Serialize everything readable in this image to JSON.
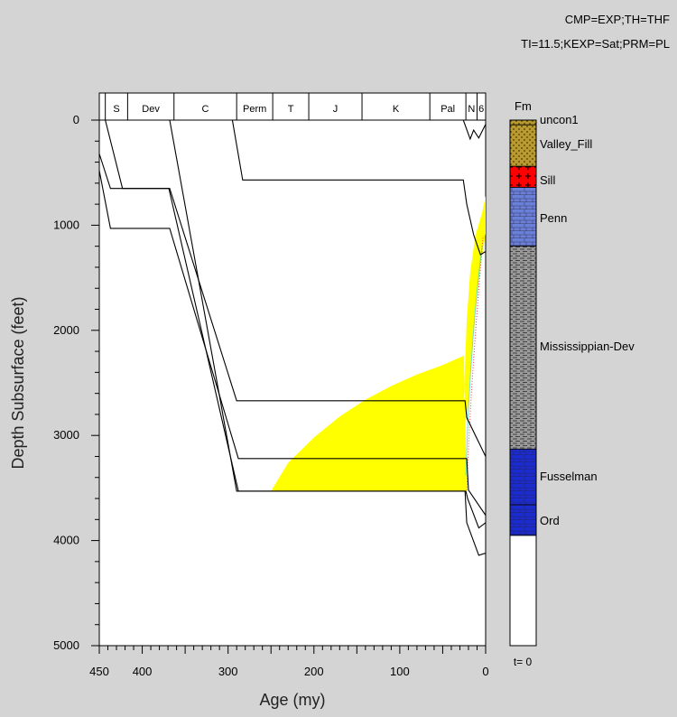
{
  "header": {
    "line1": "CMP=EXP;TH=THF",
    "line2": "TI=11.5;KEXP=Sat;PRM=PL"
  },
  "chart_data": {
    "type": "burial-history",
    "xlabel": "Age (my)",
    "ylabel": "Depth Subsurface (feet)",
    "xlim": [
      450,
      0
    ],
    "ylim": [
      0,
      5000
    ],
    "x_ticks": [
      450,
      400,
      300,
      200,
      100,
      0
    ],
    "y_ticks": [
      0,
      1000,
      2000,
      3000,
      4000,
      5000
    ],
    "periods": [
      {
        "label": "S",
        "start": 443,
        "end": 417
      },
      {
        "label": "Dev",
        "start": 417,
        "end": 363
      },
      {
        "label": "C",
        "start": 363,
        "end": 290
      },
      {
        "label": "Perm",
        "start": 290,
        "end": 248
      },
      {
        "label": "T",
        "start": 248,
        "end": 206
      },
      {
        "label": "J",
        "start": 206,
        "end": 144
      },
      {
        "label": "K",
        "start": 144,
        "end": 65
      },
      {
        "label": "Pal",
        "start": 65,
        "end": 23
      },
      {
        "label": "N",
        "start": 23,
        "end": 10
      },
      {
        "label": "6",
        "start": 10,
        "end": 0
      }
    ],
    "burial_curves": [
      {
        "points": [
          [
            450,
            320
          ],
          [
            437,
            650
          ],
          [
            368,
            650
          ],
          [
            290,
            2670
          ],
          [
            24,
            2670
          ],
          [
            22,
            2830
          ],
          [
            0,
            3200
          ]
        ]
      },
      {
        "points": [
          [
            450,
            480
          ],
          [
            437,
            1030
          ],
          [
            368,
            1030
          ],
          [
            288,
            3220
          ],
          [
            22,
            3220
          ],
          [
            20,
            3520
          ],
          [
            0,
            3760
          ]
        ]
      },
      {
        "points": [
          [
            443,
            0
          ],
          [
            423,
            650
          ],
          [
            369,
            650
          ],
          [
            288,
            3530
          ],
          [
            23,
            3530
          ],
          [
            21,
            3600
          ],
          [
            8,
            3880
          ],
          [
            0,
            3830
          ]
        ]
      },
      {
        "points": [
          [
            368,
            0
          ],
          [
            290,
            3530
          ],
          [
            24,
            3530
          ],
          [
            22,
            3830
          ],
          [
            8,
            4140
          ],
          [
            0,
            4120
          ]
        ]
      },
      {
        "points": [
          [
            295,
            0
          ],
          [
            283,
            570
          ],
          [
            26,
            570
          ],
          [
            22,
            800
          ],
          [
            14,
            1090
          ],
          [
            6,
            1280
          ],
          [
            0,
            1250
          ]
        ]
      },
      {
        "points": [
          [
            26,
            0
          ],
          [
            18,
            180
          ],
          [
            14,
            95
          ],
          [
            8,
            170
          ],
          [
            0,
            40
          ]
        ]
      }
    ],
    "fill_regions": [
      {
        "color": "#ffff00",
        "points": [
          [
            250,
            3530
          ],
          [
            230,
            3260
          ],
          [
            200,
            3020
          ],
          [
            170,
            2820
          ],
          [
            140,
            2660
          ],
          [
            110,
            2530
          ],
          [
            80,
            2420
          ],
          [
            50,
            2330
          ],
          [
            25,
            2240
          ],
          [
            25,
            2630
          ],
          [
            24,
            2670
          ],
          [
            22,
            3530
          ]
        ]
      },
      {
        "color": "#ffff00",
        "points": [
          [
            25,
            2540
          ],
          [
            22,
            1900
          ],
          [
            18,
            1450
          ],
          [
            12,
            1100
          ],
          [
            4,
            880
          ],
          [
            0,
            720
          ],
          [
            0,
            1080
          ],
          [
            6,
            1380
          ],
          [
            12,
            1800
          ],
          [
            18,
            2400
          ],
          [
            22,
            2900
          ]
        ]
      }
    ],
    "column": {
      "title": "Fm",
      "time_label": "t= 0",
      "units": [
        {
          "name": "uncon1",
          "top": 0,
          "bottom": 45,
          "color": "#b89a30",
          "pattern": "dot"
        },
        {
          "name": "Valley_Fill",
          "top": 45,
          "bottom": 440,
          "color": "#b89a30",
          "pattern": "dot"
        },
        {
          "name": "Sill",
          "top": 440,
          "bottom": 640,
          "color": "#ff0000",
          "pattern": "plus"
        },
        {
          "name": "Penn",
          "top": 640,
          "bottom": 1200,
          "color": "#6a7fd8",
          "pattern": "brick"
        },
        {
          "name": "Mississippian-Dev",
          "top": 1200,
          "bottom": 3130,
          "color": "#9a9a9a",
          "pattern": "dash"
        },
        {
          "name": "Fusselman",
          "top": 3130,
          "bottom": 3660,
          "color": "#1c2bd0",
          "pattern": "brick"
        },
        {
          "name": "Ord",
          "top": 3660,
          "bottom": 3950,
          "color": "#1c2bd0",
          "pattern": "brick"
        }
      ]
    }
  }
}
